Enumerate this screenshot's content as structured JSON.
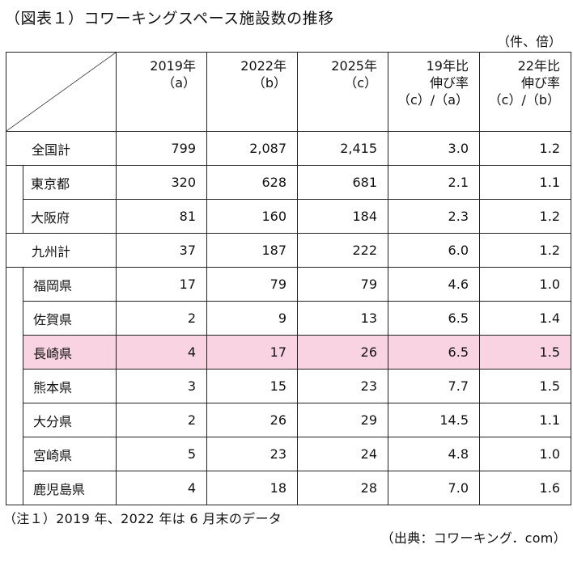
{
  "title": "（図表１）コワーキングスペース施設数の推移",
  "unit": "（件、倍）",
  "headers": [
    {
      "line1": "2019年",
      "line2": "（a）",
      "line3": ""
    },
    {
      "line1": "2022年",
      "line2": "（b）",
      "line3": ""
    },
    {
      "line1": "2025年",
      "line2": "（c）",
      "line3": ""
    },
    {
      "line1": "19年比",
      "line2": "伸び率",
      "line3": "（c）/（a）"
    },
    {
      "line1": "22年比",
      "line2": "伸び率",
      "line3": "（c）/（b）"
    }
  ],
  "rows": {
    "national": {
      "label": "全国計",
      "v2019": "799",
      "v2022": "2,087",
      "v2025": "2,415",
      "r19": "3.0",
      "r22": "1.2"
    },
    "tokyo": {
      "label": "東京都",
      "v2019": "320",
      "v2022": "628",
      "v2025": "681",
      "r19": "2.1",
      "r22": "1.1"
    },
    "osaka": {
      "label": "大阪府",
      "v2019": "81",
      "v2022": "160",
      "v2025": "184",
      "r19": "2.3",
      "r22": "1.2"
    },
    "kyushu": {
      "label": "九州計",
      "v2019": "37",
      "v2022": "187",
      "v2025": "222",
      "r19": "6.0",
      "r22": "1.2"
    },
    "fukuoka": {
      "label": "福岡県",
      "v2019": "17",
      "v2022": "79",
      "v2025": "79",
      "r19": "4.6",
      "r22": "1.0"
    },
    "saga": {
      "label": "佐賀県",
      "v2019": "2",
      "v2022": "9",
      "v2025": "13",
      "r19": "6.5",
      "r22": "1.4"
    },
    "nagasaki": {
      "label": "長崎県",
      "v2019": "4",
      "v2022": "17",
      "v2025": "26",
      "r19": "6.5",
      "r22": "1.5"
    },
    "kumamoto": {
      "label": "熊本県",
      "v2019": "3",
      "v2022": "15",
      "v2025": "23",
      "r19": "7.7",
      "r22": "1.5"
    },
    "oita": {
      "label": "大分県",
      "v2019": "2",
      "v2022": "26",
      "v2025": "29",
      "r19": "14.5",
      "r22": "1.1"
    },
    "miyazaki": {
      "label": "宮崎県",
      "v2019": "5",
      "v2022": "23",
      "v2025": "24",
      "r19": "4.8",
      "r22": "1.0"
    },
    "kagoshima": {
      "label": "鹿児島県",
      "v2019": "4",
      "v2022": "18",
      "v2025": "28",
      "r19": "7.0",
      "r22": "1.6"
    }
  },
  "highlight_color": "#f9d3e1",
  "note": "（注１）2019 年、2022 年は 6 月末のデータ",
  "source": "（出典：コワーキング．com）"
}
